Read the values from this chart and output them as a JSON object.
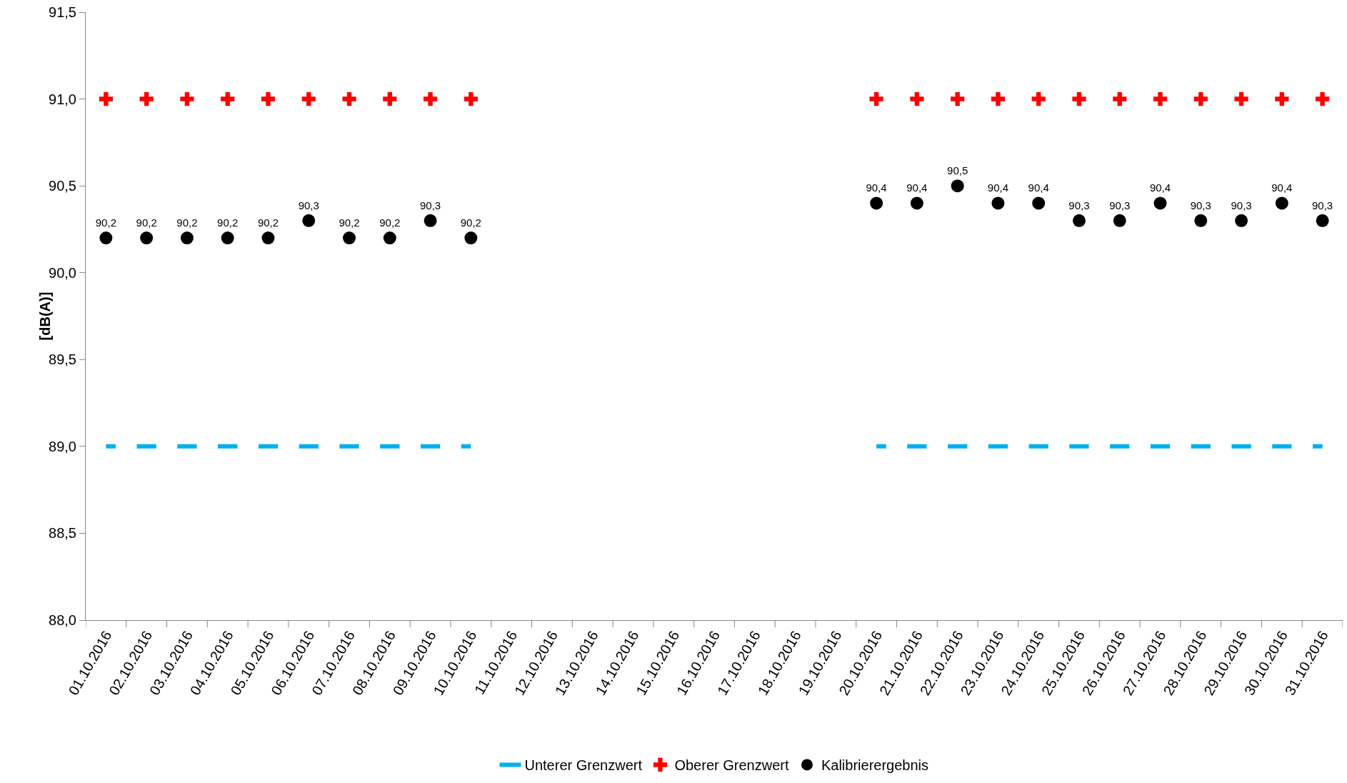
{
  "chart_data": {
    "type": "scatter",
    "ylabel": "[dB(A)]",
    "categories": [
      "01.10.2016",
      "02.10.2016",
      "03.10.2016",
      "04.10.2016",
      "05.10.2016",
      "06.10.2016",
      "07.10.2016",
      "08.10.2016",
      "09.10.2016",
      "10.10.2016",
      "11.10.2016",
      "12.10.2016",
      "13.10.2016",
      "14.10.2016",
      "15.10.2016",
      "16.10.2016",
      "17.10.2016",
      "18.10.2016",
      "19.10.2016",
      "20.10.2016",
      "21.10.2016",
      "22.10.2016",
      "23.10.2016",
      "24.10.2016",
      "25.10.2016",
      "26.10.2016",
      "27.10.2016",
      "28.10.2016",
      "29.10.2016",
      "30.10.2016",
      "31.10.2016"
    ],
    "series": [
      {
        "name": "Unterer Grenzwert",
        "color": "#00b0f0",
        "type": "line",
        "line_style": "dashed",
        "values": [
          89.0,
          89.0,
          89.0,
          89.0,
          89.0,
          89.0,
          89.0,
          89.0,
          89.0,
          89.0,
          null,
          null,
          null,
          null,
          null,
          null,
          null,
          null,
          null,
          89.0,
          89.0,
          89.0,
          89.0,
          89.0,
          89.0,
          89.0,
          89.0,
          89.0,
          89.0,
          89.0,
          89.0
        ]
      },
      {
        "name": "Oberer Grenzwert",
        "color": "#ff0000",
        "marker": "cross",
        "values": [
          91.0,
          91.0,
          91.0,
          91.0,
          91.0,
          91.0,
          91.0,
          91.0,
          91.0,
          91.0,
          null,
          null,
          null,
          null,
          null,
          null,
          null,
          null,
          null,
          91.0,
          91.0,
          91.0,
          91.0,
          91.0,
          91.0,
          91.0,
          91.0,
          91.0,
          91.0,
          91.0,
          91.0
        ]
      },
      {
        "name": "Kalibrierergebnis",
        "color": "#000000",
        "marker": "circle",
        "values": [
          90.2,
          90.2,
          90.2,
          90.2,
          90.2,
          90.3,
          90.2,
          90.2,
          90.3,
          90.2,
          null,
          null,
          null,
          null,
          null,
          null,
          null,
          null,
          null,
          90.4,
          90.4,
          90.5,
          90.4,
          90.4,
          90.3,
          90.3,
          90.4,
          90.3,
          90.3,
          90.4,
          90.3
        ],
        "value_labels": [
          "90,2",
          "90,2",
          "90,2",
          "90,2",
          "90,2",
          "90,3",
          "90,2",
          "90,2",
          "90,3",
          "90,2",
          null,
          null,
          null,
          null,
          null,
          null,
          null,
          null,
          null,
          "90,4",
          "90,4",
          "90,5",
          "90,4",
          "90,4",
          "90,3",
          "90,3",
          "90,4",
          "90,3",
          "90,3",
          "90,4",
          "90,3"
        ]
      }
    ],
    "ylim": [
      88.0,
      91.5
    ],
    "yticks": [
      {
        "value": 88.0,
        "label": "88,0"
      },
      {
        "value": 88.5,
        "label": "88,5"
      },
      {
        "value": 89.0,
        "label": "89,0"
      },
      {
        "value": 89.5,
        "label": "89,5"
      },
      {
        "value": 90.0,
        "label": "90,0"
      },
      {
        "value": 90.5,
        "label": "90,5"
      },
      {
        "value": 91.0,
        "label": "91,0"
      },
      {
        "value": 91.5,
        "label": "91,5"
      }
    ],
    "grid": false,
    "legend": "bottom"
  }
}
